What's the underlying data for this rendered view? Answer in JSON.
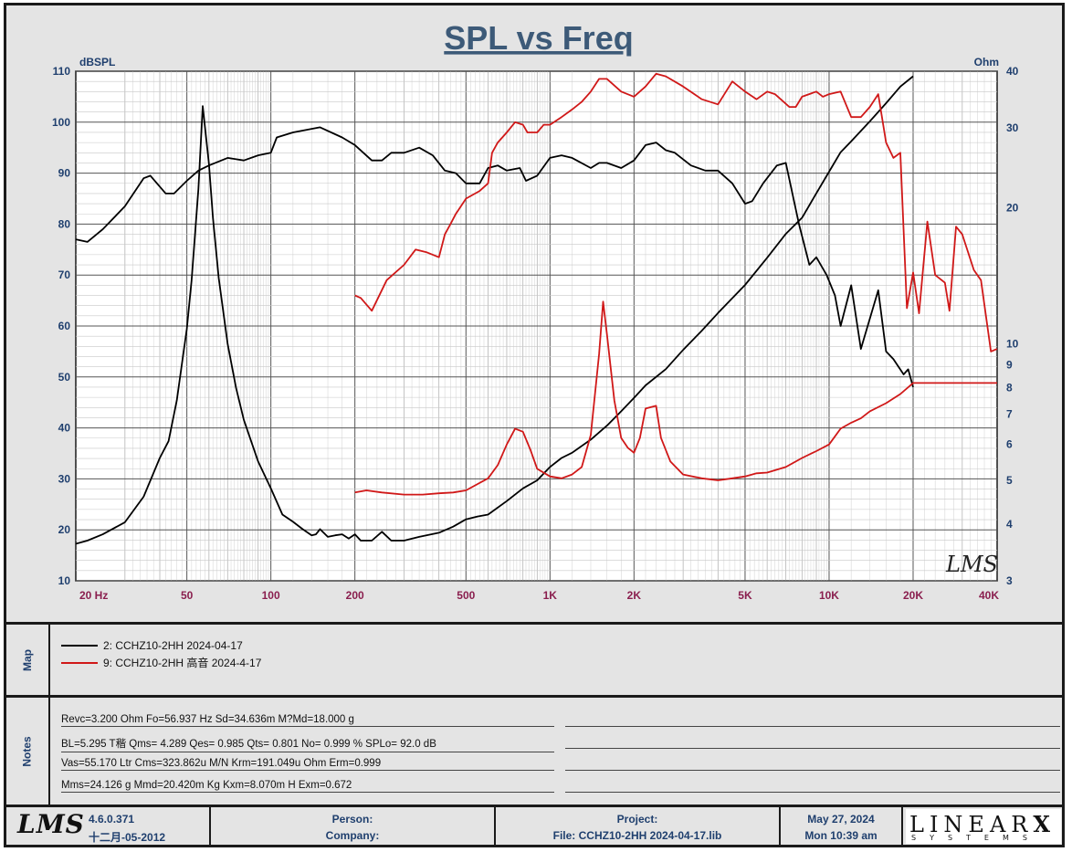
{
  "chart_data": {
    "type": "line",
    "title": "SPL vs Freq",
    "y_left_label": "dBSPL",
    "y_right_label": "Ohm",
    "x_scale": "log",
    "xlim": [
      20,
      40000
    ],
    "ylim_left": [
      10,
      110
    ],
    "ylim_right": [
      3,
      40
    ],
    "y_right_scale": "log",
    "grid": true,
    "x_ticks": [
      {
        "v": 20,
        "label": "20  Hz"
      },
      {
        "v": 50,
        "label": "50"
      },
      {
        "v": 100,
        "label": "100"
      },
      {
        "v": 200,
        "label": "200"
      },
      {
        "v": 500,
        "label": "500"
      },
      {
        "v": 1000,
        "label": "1K"
      },
      {
        "v": 2000,
        "label": "2K"
      },
      {
        "v": 5000,
        "label": "5K"
      },
      {
        "v": 10000,
        "label": "10K"
      },
      {
        "v": 20000,
        "label": "20K"
      },
      {
        "v": 40000,
        "label": "40K"
      }
    ],
    "y_left_ticks": [
      10,
      20,
      30,
      40,
      50,
      60,
      70,
      80,
      90,
      100,
      110
    ],
    "y_right_ticks": [
      3,
      4,
      5,
      6,
      7,
      8,
      9,
      10,
      20,
      30,
      40
    ],
    "series": [
      {
        "name": "2: CCHZ10-2HH 2024-04-17",
        "color": "#000000",
        "spl": [
          [
            20,
            77
          ],
          [
            22,
            76.5
          ],
          [
            25,
            79
          ],
          [
            30,
            83.5
          ],
          [
            35,
            89
          ],
          [
            37,
            89.5
          ],
          [
            42,
            86
          ],
          [
            45,
            86
          ],
          [
            50,
            88.5
          ],
          [
            55,
            90.5
          ],
          [
            60,
            91.5
          ],
          [
            70,
            93
          ],
          [
            80,
            92.5
          ],
          [
            90,
            93.5
          ],
          [
            100,
            94
          ],
          [
            105,
            97
          ],
          [
            120,
            98
          ],
          [
            150,
            99
          ],
          [
            180,
            97
          ],
          [
            200,
            95.5
          ],
          [
            230,
            92.5
          ],
          [
            250,
            92.5
          ],
          [
            270,
            94
          ],
          [
            300,
            94
          ],
          [
            340,
            95
          ],
          [
            380,
            93.5
          ],
          [
            420,
            90.5
          ],
          [
            460,
            90
          ],
          [
            500,
            88
          ],
          [
            560,
            88
          ],
          [
            600,
            91
          ],
          [
            650,
            91.5
          ],
          [
            700,
            90.5
          ],
          [
            780,
            91
          ],
          [
            820,
            88.5
          ],
          [
            900,
            89.5
          ],
          [
            1000,
            93
          ],
          [
            1100,
            93.5
          ],
          [
            1200,
            93
          ],
          [
            1400,
            91
          ],
          [
            1500,
            92
          ],
          [
            1600,
            92
          ],
          [
            1800,
            91
          ],
          [
            2000,
            92.5
          ],
          [
            2200,
            95.5
          ],
          [
            2400,
            96
          ],
          [
            2600,
            94.5
          ],
          [
            2800,
            94
          ],
          [
            3200,
            91.5
          ],
          [
            3600,
            90.5
          ],
          [
            4000,
            90.5
          ],
          [
            4500,
            88
          ],
          [
            5000,
            84
          ],
          [
            5300,
            84.5
          ],
          [
            5800,
            88
          ],
          [
            6500,
            91.5
          ],
          [
            7000,
            92
          ],
          [
            7800,
            80
          ],
          [
            8500,
            72
          ],
          [
            9000,
            73.5
          ],
          [
            9800,
            70
          ],
          [
            10500,
            66
          ],
          [
            11000,
            60
          ],
          [
            12000,
            68
          ],
          [
            13000,
            55.5
          ],
          [
            15000,
            67
          ],
          [
            16000,
            55
          ],
          [
            17000,
            53.5
          ],
          [
            18500,
            50.5
          ],
          [
            19200,
            51.5
          ],
          [
            20000,
            48
          ]
        ],
        "impedance": [
          [
            20,
            3.62
          ],
          [
            22,
            3.68
          ],
          [
            25,
            3.8
          ],
          [
            30,
            4.04
          ],
          [
            35,
            4.6
          ],
          [
            40,
            5.6
          ],
          [
            43,
            6.1
          ],
          [
            46,
            7.5
          ],
          [
            50,
            10.8
          ],
          [
            52,
            13.8
          ],
          [
            55,
            22
          ],
          [
            57,
            33.5
          ],
          [
            60,
            25
          ],
          [
            62,
            19
          ],
          [
            65,
            14
          ],
          [
            70,
            10
          ],
          [
            75,
            8
          ],
          [
            80,
            6.8
          ],
          [
            90,
            5.5
          ],
          [
            100,
            4.8
          ],
          [
            110,
            4.2
          ],
          [
            120,
            4.05
          ],
          [
            130,
            3.9
          ],
          [
            140,
            3.78
          ],
          [
            145,
            3.8
          ],
          [
            150,
            3.9
          ],
          [
            160,
            3.75
          ],
          [
            170,
            3.78
          ],
          [
            180,
            3.8
          ],
          [
            190,
            3.72
          ],
          [
            200,
            3.8
          ],
          [
            210,
            3.68
          ],
          [
            230,
            3.68
          ],
          [
            250,
            3.85
          ],
          [
            270,
            3.68
          ],
          [
            300,
            3.68
          ],
          [
            340,
            3.75
          ],
          [
            400,
            3.83
          ],
          [
            450,
            3.95
          ],
          [
            500,
            4.1
          ],
          [
            550,
            4.16
          ],
          [
            600,
            4.2
          ],
          [
            700,
            4.5
          ],
          [
            800,
            4.8
          ],
          [
            900,
            5.0
          ],
          [
            1000,
            5.35
          ],
          [
            1100,
            5.6
          ],
          [
            1200,
            5.75
          ],
          [
            1400,
            6.15
          ],
          [
            1600,
            6.6
          ],
          [
            1800,
            7.1
          ],
          [
            2000,
            7.6
          ],
          [
            2200,
            8.1
          ],
          [
            2600,
            8.8
          ],
          [
            3000,
            9.7
          ],
          [
            3500,
            10.7
          ],
          [
            4000,
            11.7
          ],
          [
            5000,
            13.5
          ],
          [
            6000,
            15.5
          ],
          [
            7000,
            17.5
          ],
          [
            8000,
            19
          ],
          [
            9000,
            21.5
          ],
          [
            10000,
            24
          ],
          [
            11000,
            26.5
          ],
          [
            12000,
            28
          ],
          [
            14000,
            31
          ],
          [
            16000,
            34
          ],
          [
            18000,
            37
          ],
          [
            20000,
            39
          ]
        ]
      },
      {
        "name": "9: CCHZ10-2HH 高音 2024-4-17",
        "color": "#d01818",
        "spl": [
          [
            200,
            66
          ],
          [
            210,
            65.5
          ],
          [
            230,
            63
          ],
          [
            260,
            69
          ],
          [
            300,
            72
          ],
          [
            330,
            75
          ],
          [
            360,
            74.5
          ],
          [
            400,
            73.5
          ],
          [
            420,
            78
          ],
          [
            440,
            80
          ],
          [
            460,
            82
          ],
          [
            500,
            85
          ],
          [
            560,
            86.5
          ],
          [
            600,
            88
          ],
          [
            620,
            94
          ],
          [
            650,
            96
          ],
          [
            700,
            98
          ],
          [
            750,
            100
          ],
          [
            800,
            99.5
          ],
          [
            830,
            98
          ],
          [
            900,
            98
          ],
          [
            950,
            99.5
          ],
          [
            1000,
            99.5
          ],
          [
            1100,
            101
          ],
          [
            1200,
            102.5
          ],
          [
            1300,
            104
          ],
          [
            1400,
            106
          ],
          [
            1500,
            108.5
          ],
          [
            1600,
            108.5
          ],
          [
            1800,
            106
          ],
          [
            2000,
            105
          ],
          [
            2200,
            107
          ],
          [
            2400,
            109.5
          ],
          [
            2600,
            109
          ],
          [
            3000,
            107
          ],
          [
            3500,
            104.5
          ],
          [
            4000,
            103.5
          ],
          [
            4500,
            108
          ],
          [
            5000,
            106
          ],
          [
            5500,
            104.5
          ],
          [
            6000,
            106
          ],
          [
            6400,
            105.5
          ],
          [
            7200,
            103
          ],
          [
            7600,
            103
          ],
          [
            8000,
            105
          ],
          [
            9000,
            106
          ],
          [
            9500,
            105
          ],
          [
            10000,
            105.5
          ],
          [
            11000,
            106
          ],
          [
            12000,
            101
          ],
          [
            13000,
            101
          ],
          [
            14000,
            103
          ],
          [
            15000,
            105.5
          ],
          [
            16000,
            96
          ],
          [
            17000,
            93
          ],
          [
            18000,
            94
          ],
          [
            19000,
            63.5
          ],
          [
            20000,
            70.5
          ],
          [
            21000,
            62.5
          ],
          [
            22500,
            80.5
          ],
          [
            24000,
            70
          ],
          [
            26000,
            68.5
          ],
          [
            27000,
            63
          ],
          [
            28500,
            79.5
          ],
          [
            30000,
            78
          ],
          [
            33000,
            71
          ],
          [
            35000,
            69
          ],
          [
            38000,
            55
          ],
          [
            40000,
            55.5
          ]
        ],
        "impedance": [
          [
            200,
            4.7
          ],
          [
            220,
            4.75
          ],
          [
            250,
            4.7
          ],
          [
            300,
            4.65
          ],
          [
            350,
            4.65
          ],
          [
            400,
            4.68
          ],
          [
            450,
            4.7
          ],
          [
            500,
            4.75
          ],
          [
            600,
            5.05
          ],
          [
            650,
            5.4
          ],
          [
            700,
            6.0
          ],
          [
            750,
            6.5
          ],
          [
            800,
            6.4
          ],
          [
            850,
            5.85
          ],
          [
            900,
            5.3
          ],
          [
            1000,
            5.1
          ],
          [
            1100,
            5.05
          ],
          [
            1200,
            5.15
          ],
          [
            1300,
            5.35
          ],
          [
            1400,
            6.3
          ],
          [
            1500,
            9.5
          ],
          [
            1550,
            12.4
          ],
          [
            1600,
            10.5
          ],
          [
            1700,
            7.5
          ],
          [
            1800,
            6.2
          ],
          [
            1900,
            5.9
          ],
          [
            2000,
            5.75
          ],
          [
            2100,
            6.2
          ],
          [
            2200,
            7.2
          ],
          [
            2400,
            7.3
          ],
          [
            2500,
            6.2
          ],
          [
            2700,
            5.5
          ],
          [
            3000,
            5.15
          ],
          [
            3500,
            5.05
          ],
          [
            4000,
            5.0
          ],
          [
            4500,
            5.05
          ],
          [
            5000,
            5.1
          ],
          [
            5500,
            5.18
          ],
          [
            6000,
            5.2
          ],
          [
            7000,
            5.35
          ],
          [
            8000,
            5.6
          ],
          [
            9000,
            5.8
          ],
          [
            10000,
            6.0
          ],
          [
            11000,
            6.5
          ],
          [
            12000,
            6.7
          ],
          [
            13000,
            6.85
          ],
          [
            14000,
            7.1
          ],
          [
            16000,
            7.4
          ],
          [
            18000,
            7.75
          ],
          [
            20000,
            8.2
          ],
          [
            40000,
            8.2
          ]
        ]
      }
    ],
    "watermark": "LMS"
  },
  "map": {
    "label": "Map",
    "entries": [
      {
        "text": "2: CCHZ10-2HH 2024-04-17",
        "color": "#000000"
      },
      {
        "text": "9: CCHZ10-2HH 高音 2024-4-17",
        "color": "#d01818"
      }
    ]
  },
  "notes": {
    "label": "Notes",
    "lines": [
      "Revc=3.200 Ohm  Fo=56.937 Hz  Sd=34.636m M?Md=18.000 g",
      "BL=5.295 T稭  Qms= 4.289  Qes= 0.985  Qts= 0.801  No= 0.999 %  SPLo= 92.0 dB",
      "Vas=55.170 Ltr  Cms=323.862u M/N  Krm=191.049u Ohm  Erm=0.999",
      "Mms=24.126 g  Mmd=20.420m Kg  Kxm=8.070m H  Exm=0.672"
    ]
  },
  "footer": {
    "logo": "LMS",
    "version": "4.6.0.371",
    "build_date": "十二月-05-2012",
    "person_label": "Person:",
    "company_label": "Company:",
    "project_label": "Project:",
    "file_label": "File: CCHZ10-2HH 2024-04-17.lib",
    "date": "May 27, 2024",
    "time": "Mon 10:39 am",
    "brand": "LINEAR",
    "brand_x": "X",
    "brand_sub": "SYSTEMS"
  }
}
